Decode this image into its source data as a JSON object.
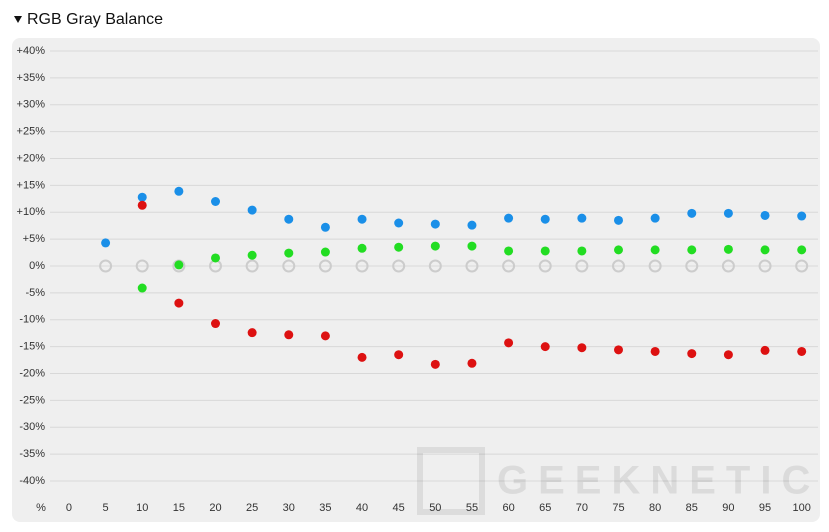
{
  "chart_data": {
    "type": "scatter",
    "title": "RGB Gray Balance",
    "xlabel": "%",
    "watermark": "GEEKNETIC",
    "x": [
      5,
      10,
      15,
      20,
      25,
      30,
      35,
      40,
      45,
      50,
      55,
      60,
      65,
      70,
      75,
      80,
      85,
      90,
      95,
      100
    ],
    "series": [
      {
        "color": "#cccccc",
        "marker": "hollow",
        "values": [
          0,
          0,
          0,
          0,
          0,
          0,
          0,
          0,
          0,
          0,
          0,
          0,
          0,
          0,
          0,
          0,
          0,
          0,
          0,
          0
        ]
      },
      {
        "color": "#1a8fe8",
        "values": [
          4.3,
          12.8,
          13.9,
          12.0,
          10.4,
          8.7,
          7.2,
          8.7,
          8.0,
          7.8,
          7.6,
          8.9,
          8.7,
          8.9,
          8.5,
          8.9,
          9.8,
          9.8,
          9.4,
          9.3
        ]
      },
      {
        "color": "#22dd22",
        "values": [
          null,
          -4.1,
          0.2,
          1.5,
          2.0,
          2.4,
          2.6,
          3.3,
          3.5,
          3.7,
          3.7,
          2.8,
          2.8,
          2.8,
          3.0,
          3.0,
          3.0,
          3.1,
          3.0,
          3.0
        ]
      },
      {
        "color": "#dd1111",
        "values": [
          null,
          11.3,
          -6.9,
          -10.7,
          -12.4,
          -12.8,
          -13.0,
          -17.0,
          -16.5,
          -18.3,
          -18.1,
          -14.3,
          -15.0,
          -15.2,
          -15.6,
          -15.9,
          -16.3,
          -16.5,
          -15.7,
          -15.9
        ]
      }
    ],
    "xlim": [
      -7.5,
      102.5
    ],
    "xticks": [
      0,
      5,
      10,
      15,
      20,
      25,
      30,
      35,
      40,
      45,
      50,
      55,
      60,
      65,
      70,
      75,
      80,
      85,
      90,
      95,
      100
    ],
    "ylim": [
      -40,
      40
    ],
    "yticks": [
      {
        "value": 40,
        "label": "+40%"
      },
      {
        "value": 35,
        "label": "+35%"
      },
      {
        "value": 30,
        "label": "+30%"
      },
      {
        "value": 25,
        "label": "+25%"
      },
      {
        "value": 20,
        "label": "+20%"
      },
      {
        "value": 15,
        "label": "+15%"
      },
      {
        "value": 10,
        "label": "+10%"
      },
      {
        "value": 5,
        "label": "+5%"
      },
      {
        "value": 0,
        "label": "0%"
      },
      {
        "value": -5,
        "label": "-5%"
      },
      {
        "value": -10,
        "label": "-10%"
      },
      {
        "value": -15,
        "label": "-15%"
      },
      {
        "value": -20,
        "label": "-20%"
      },
      {
        "value": -25,
        "label": "-25%"
      },
      {
        "value": -30,
        "label": "-30%"
      },
      {
        "value": -35,
        "label": "-35%"
      },
      {
        "value": -40,
        "label": "-40%"
      }
    ],
    "grid": true
  }
}
